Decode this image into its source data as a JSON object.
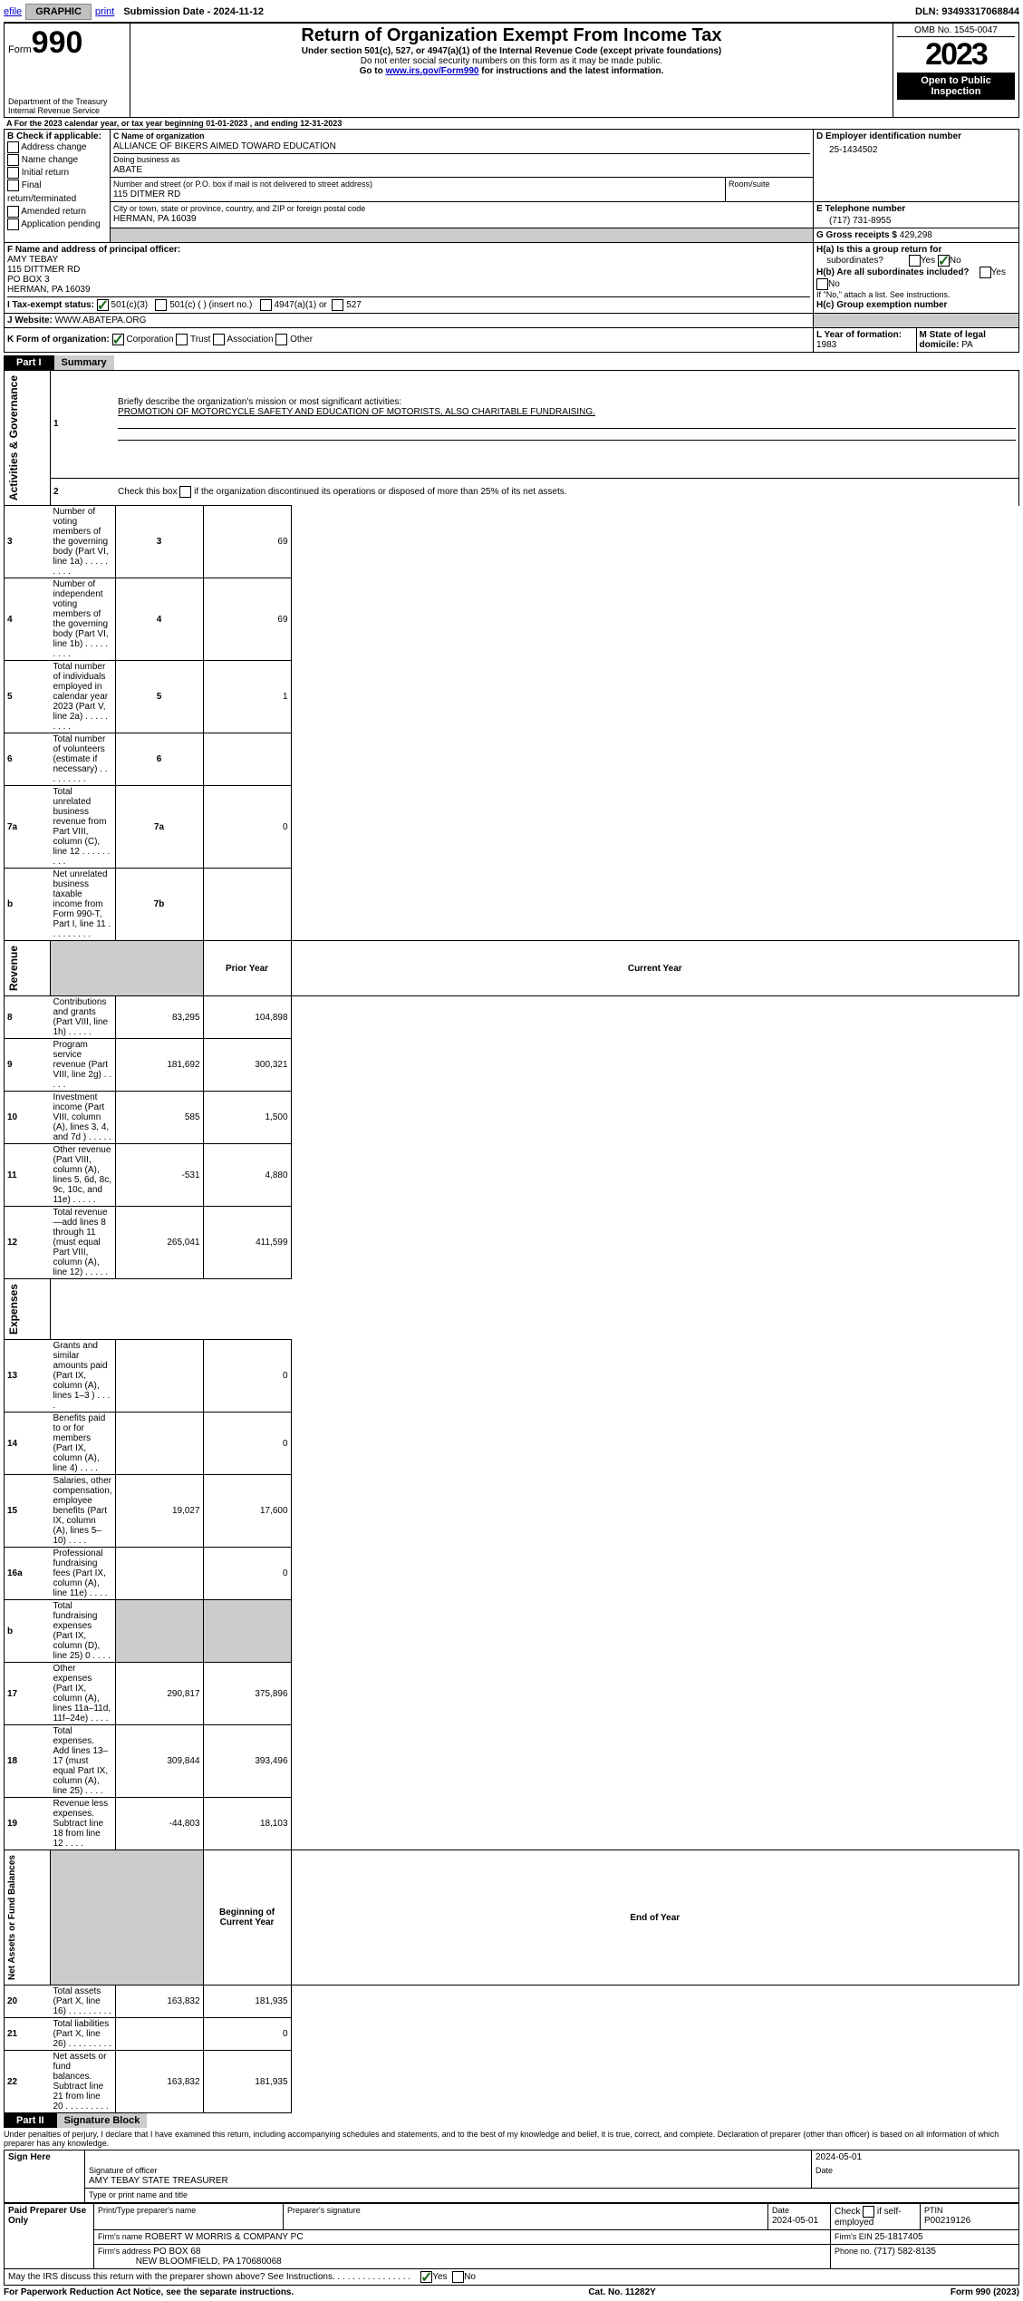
{
  "topbar": {
    "efile": "efile",
    "graphic": "GRAPHIC",
    "print": "print",
    "submission_label": "Submission Date - 2024-11-12",
    "dln": "DLN: 93493317068844"
  },
  "header": {
    "form_prefix": "Form",
    "form_number": "990",
    "dept": "Department of the Treasury\nInternal Revenue Service",
    "title": "Return of Organization Exempt From Income Tax",
    "sub1": "Under section 501(c), 527, or 4947(a)(1) of the Internal Revenue Code (except private foundations)",
    "sub2": "Do not enter social security numbers on this form as it may be made public.",
    "sub3_pre": "Go to ",
    "sub3_link": "www.irs.gov/Form990",
    "sub3_post": " for instructions and the latest information.",
    "omb": "OMB No. 1545-0047",
    "year": "2023",
    "inspect": "Open to Public Inspection"
  },
  "section_a": {
    "line_a": "A For the 2023 calendar year, or tax year beginning 01-01-2023    , and ending 12-31-2023",
    "b_label": "B Check if applicable:",
    "b_opts": [
      "Address change",
      "Name change",
      "Initial return",
      "Final return/terminated",
      "Amended return",
      "Application pending"
    ],
    "c_label": "C Name of organization",
    "c_name": "ALLIANCE OF BIKERS AIMED TOWARD EDUCATION",
    "dba_label": "Doing business as",
    "dba": "ABATE",
    "addr_label": "Number and street (or P.O. box if mail is not delivered to street address)",
    "addr": "115 DITMER RD",
    "room": "Room/suite",
    "city_label": "City or town, state or province, country, and ZIP or foreign postal code",
    "city": "HERMAN, PA  16039",
    "d_label": "D Employer identification number",
    "d_val": "25-1434502",
    "e_label": "E Telephone number",
    "e_val": "(717) 731-8955",
    "g_label": "G Gross receipts $",
    "g_val": "429,298",
    "f_label": "F  Name and address of principal officer:",
    "f_name": "AMY TEBAY",
    "f_addr1": "115 DITTMER RD",
    "f_addr2": "PO BOX 3",
    "f_city": "HERMAN, PA   16039",
    "ha": "H(a)  Is this a group return for",
    "ha2": "subordinates?",
    "hb": "H(b)  Are all subordinates included?",
    "hb2": "If \"No,\" attach a list. See instructions.",
    "hc": "H(c)  Group exemption number ",
    "yes": "Yes",
    "no": "No",
    "i_label": "I   Tax-exempt status:",
    "i_501c3": "501(c)(3)",
    "i_501c": "501(c) (  ) (insert no.)",
    "i_4947": "4947(a)(1) or",
    "i_527": "527",
    "j_label": "J   Website: ",
    "j_val": "WWW.ABATEPA.ORG",
    "k_label": "K Form of organization:",
    "k_opts": [
      "Corporation",
      "Trust",
      "Association",
      "Other"
    ],
    "l_label": "L Year of formation: ",
    "l_val": "1983",
    "m_label": "M State of legal domicile: ",
    "m_val": "PA"
  },
  "part1": {
    "tab": "Part I",
    "title": "Summary",
    "gov_label": "Activities & Governance",
    "rev_label": "Revenue",
    "exp_label": "Expenses",
    "net_label": "Net Assets or Fund Balances",
    "line1_label": "Briefly describe the organization's mission or most significant activities:",
    "line1_val": "PROMOTION OF MOTORCYCLE SAFETY AND EDUCATION OF MOTORISTS, ALSO CHARITABLE FUNDRAISING.",
    "line2": "Check this box       if the organization discontinued its operations or disposed of more than 25% of its net assets.",
    "lines_gov": [
      {
        "n": "3",
        "t": "Number of voting members of the governing body (Part VI, line 1a)",
        "k": "3",
        "v": "69"
      },
      {
        "n": "4",
        "t": "Number of independent voting members of the governing body (Part VI, line 1b)",
        "k": "4",
        "v": "69"
      },
      {
        "n": "5",
        "t": "Total number of individuals employed in calendar year 2023 (Part V, line 2a)",
        "k": "5",
        "v": "1"
      },
      {
        "n": "6",
        "t": "Total number of volunteers (estimate if necessary)",
        "k": "6",
        "v": ""
      },
      {
        "n": "7a",
        "t": "Total unrelated business revenue from Part VIII, column (C), line 12",
        "k": "7a",
        "v": "0"
      },
      {
        "n": "",
        "t": "Net unrelated business taxable income from Form 990-T, Part I, line 11",
        "k": "7b",
        "v": ""
      }
    ],
    "col_prior": "Prior Year",
    "col_current": "Current Year",
    "col_begin": "Beginning of Current Year",
    "col_end": "End of Year",
    "lines_rev": [
      {
        "n": "8",
        "t": "Contributions and grants (Part VIII, line 1h)",
        "p": "83,295",
        "c": "104,898"
      },
      {
        "n": "9",
        "t": "Program service revenue (Part VIII, line 2g)",
        "p": "181,692",
        "c": "300,321"
      },
      {
        "n": "10",
        "t": "Investment income (Part VIII, column (A), lines 3, 4, and 7d )",
        "p": "585",
        "c": "1,500"
      },
      {
        "n": "11",
        "t": "Other revenue (Part VIII, column (A), lines 5, 6d, 8c, 9c, 10c, and 11e)",
        "p": "-531",
        "c": "4,880"
      },
      {
        "n": "12",
        "t": "Total revenue—add lines 8 through 11 (must equal Part VIII, column (A), line 12)",
        "p": "265,041",
        "c": "411,599"
      }
    ],
    "lines_exp": [
      {
        "n": "13",
        "t": "Grants and similar amounts paid (Part IX, column (A), lines 1–3 )",
        "p": "",
        "c": "0"
      },
      {
        "n": "14",
        "t": "Benefits paid to or for members (Part IX, column (A), line 4)",
        "p": "",
        "c": "0"
      },
      {
        "n": "15",
        "t": "Salaries, other compensation, employee benefits (Part IX, column (A), lines 5–10)",
        "p": "19,027",
        "c": "17,600"
      },
      {
        "n": "16a",
        "t": "Professional fundraising fees (Part IX, column (A), line 11e)",
        "p": "",
        "c": "0"
      },
      {
        "n": "b",
        "t": "Total fundraising expenses (Part IX, column (D), line 25) 0",
        "p": "GREY",
        "c": "GREY"
      },
      {
        "n": "17",
        "t": "Other expenses (Part IX, column (A), lines 11a–11d, 11f–24e)",
        "p": "290,817",
        "c": "375,896"
      },
      {
        "n": "18",
        "t": "Total expenses. Add lines 13–17 (must equal Part IX, column (A), line 25)",
        "p": "309,844",
        "c": "393,496"
      },
      {
        "n": "19",
        "t": "Revenue less expenses. Subtract line 18 from line 12",
        "p": "-44,803",
        "c": "18,103"
      }
    ],
    "lines_net": [
      {
        "n": "20",
        "t": "Total assets (Part X, line 16)",
        "p": "163,832",
        "c": "181,935"
      },
      {
        "n": "21",
        "t": "Total liabilities (Part X, line 26)",
        "p": "",
        "c": "0"
      },
      {
        "n": "22",
        "t": "Net assets or fund balances. Subtract line 21 from line 20",
        "p": "163,832",
        "c": "181,935"
      }
    ]
  },
  "part2": {
    "tab": "Part II",
    "title": "Signature Block",
    "decl": "Under penalties of perjury, I declare that I have examined this return, including accompanying schedules and statements, and to the best of my knowledge and belief, it is true, correct, and complete. Declaration of preparer (other than officer) is based on all information of which preparer has any knowledge.",
    "sign_here": "Sign Here",
    "sig_officer": "Signature of officer",
    "officer_name": "AMY TEBAY  STATE TREASURER",
    "type_name": "Type or print name and title",
    "date": "Date",
    "date_val": "2024-05-01",
    "paid": "Paid Preparer Use Only",
    "prep_name_label": "Print/Type preparer's name",
    "prep_sig_label": "Preparer's signature",
    "prep_date": "2024-05-01",
    "check_self": "Check        if self-employed",
    "ptin_label": "PTIN",
    "ptin": "P00219126",
    "firm_name_label": "Firm's name   ",
    "firm_name": "ROBERT W MORRIS & COMPANY PC",
    "firm_ein_label": "Firm's EIN  ",
    "firm_ein": "25-1817405",
    "firm_addr_label": "Firm's address ",
    "firm_addr": "PO BOX 68",
    "firm_city": "NEW BLOOMFIELD, PA   170680068",
    "phone_label": "Phone no. ",
    "phone": "(717) 582-8135",
    "discuss": "May the IRS discuss this return with the preparer shown above? See Instructions."
  },
  "footer": {
    "paperwork": "For Paperwork Reduction Act Notice, see the separate instructions.",
    "cat": "Cat. No. 11282Y",
    "form": "Form 990 (2023)"
  }
}
